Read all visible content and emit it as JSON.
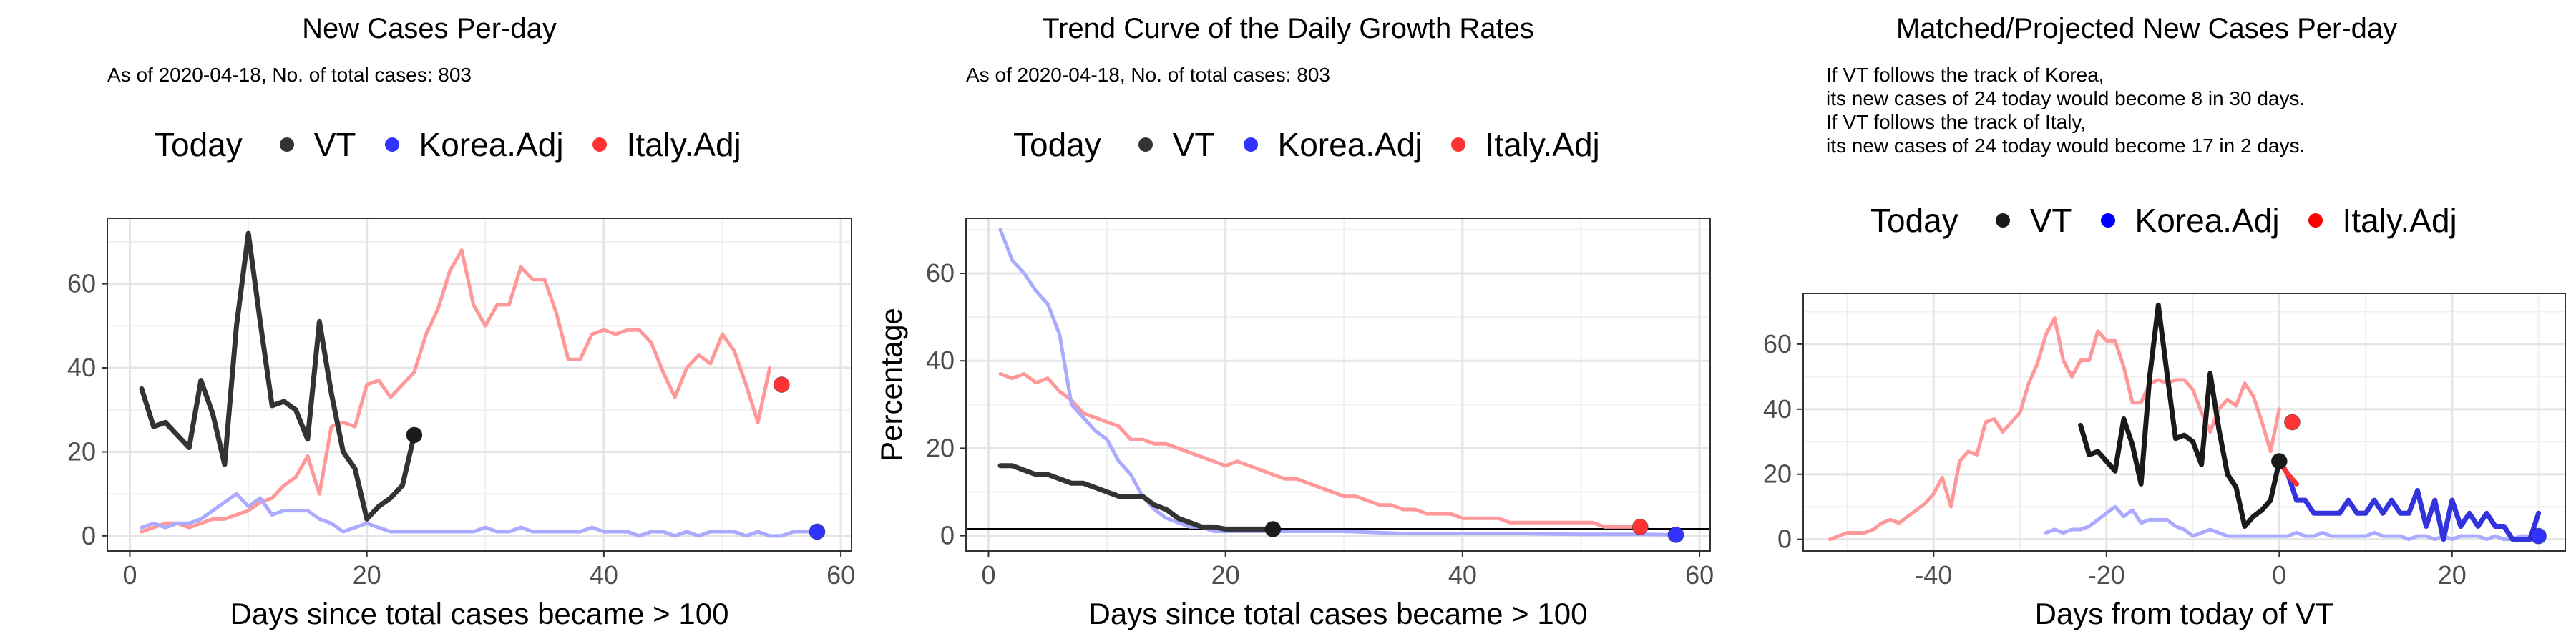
{
  "legend": {
    "title": "Today",
    "entries": [
      {
        "label": "VT",
        "color": "#1a1a1a"
      },
      {
        "label": "Korea.Adj",
        "color": "#3333ff"
      },
      {
        "label": "Italy.Adj",
        "color": "#ff3333"
      }
    ]
  },
  "panels": [
    {
      "title": "New Cases Per-day",
      "subtitle_lines": [
        "As of 2020-04-18, No. of total cases: 803"
      ]
    },
    {
      "title": "Trend Curve of the Daily Growth Rates",
      "subtitle_lines": [
        "As of 2020-04-18, No. of total cases: 803"
      ]
    },
    {
      "title": "Matched/Projected New Cases Per-day",
      "subtitle_lines": [
        "If VT follows the track of Korea,",
        "its new cases of 24 today would become 8 in 30 days.",
        "If VT follows the track of Italy,",
        "its new cases of 24 today would become 17 in 2 days."
      ]
    }
  ],
  "chart_data": [
    {
      "type": "line",
      "title": "New Cases Per-day",
      "xlabel": "Days since total cases became > 100",
      "ylabel": "",
      "xlim": [
        -1.9,
        60.9
      ],
      "ylim": [
        -3.6,
        75.6
      ],
      "xticks": [
        0,
        20,
        40,
        60
      ],
      "yticks": [
        0,
        20,
        40,
        60
      ],
      "grid": true,
      "series": [
        {
          "name": "Italy.Adj",
          "color": "#ff9999",
          "width": 5,
          "x": [
            1,
            2,
            3,
            4,
            5,
            6,
            7,
            8,
            9,
            10,
            11,
            12,
            13,
            14,
            15,
            16,
            17,
            18,
            19,
            20,
            21,
            22,
            23,
            24,
            25,
            26,
            27,
            28,
            29,
            30,
            31,
            32,
            33,
            34,
            35,
            36,
            37,
            38,
            39,
            40,
            41,
            42,
            43,
            44,
            45,
            46,
            47,
            48,
            49,
            50,
            51,
            52,
            53,
            54
          ],
          "y": [
            1,
            2,
            3,
            3,
            2,
            3,
            4,
            4,
            5,
            6,
            8,
            9,
            12,
            14,
            19,
            10,
            26,
            27,
            26,
            36,
            37,
            33,
            36,
            39,
            48,
            54,
            63,
            68,
            55,
            50,
            55,
            55,
            64,
            61,
            61,
            53,
            42,
            42,
            48,
            49,
            48,
            49,
            49,
            46,
            39,
            33,
            40,
            43,
            41,
            48,
            44,
            36,
            27,
            40
          ]
        },
        {
          "name": "Korea.Adj",
          "color": "#aaaaff",
          "width": 5,
          "x": [
            1,
            2,
            3,
            4,
            5,
            6,
            7,
            8,
            9,
            10,
            11,
            12,
            13,
            14,
            15,
            16,
            17,
            18,
            19,
            20,
            21,
            22,
            23,
            24,
            25,
            26,
            27,
            28,
            29,
            30,
            31,
            32,
            33,
            34,
            35,
            36,
            37,
            38,
            39,
            40,
            41,
            42,
            43,
            44,
            45,
            46,
            47,
            48,
            49,
            50,
            51,
            52,
            53,
            54,
            55,
            56,
            57,
            58
          ],
          "y": [
            2,
            3,
            2,
            3,
            3,
            4,
            6,
            8,
            10,
            7,
            9,
            5,
            6,
            6,
            6,
            4,
            3,
            1,
            2,
            3,
            2,
            1,
            1,
            1,
            1,
            1,
            1,
            1,
            1,
            2,
            1,
            1,
            2,
            1,
            1,
            1,
            1,
            1,
            2,
            1,
            1,
            1,
            0,
            1,
            1,
            0,
            1,
            0,
            1,
            1,
            1,
            0,
            1,
            0,
            0,
            1,
            1,
            1
          ]
        },
        {
          "name": "VT",
          "color": "#333333",
          "width": 7,
          "x": [
            1,
            2,
            3,
            4,
            5,
            6,
            7,
            8,
            9,
            10,
            11,
            12,
            13,
            14,
            15,
            16,
            17,
            18,
            19,
            20,
            21,
            22,
            23,
            24
          ],
          "y": [
            35,
            26,
            27,
            24,
            21,
            37,
            29,
            17,
            50,
            72,
            51,
            31,
            32,
            30,
            23,
            51,
            34,
            20,
            16,
            4,
            7,
            9,
            12,
            24
          ]
        }
      ],
      "today_points": [
        {
          "name": "Italy.Adj",
          "x": 55,
          "y": 36,
          "color": "#ff3333"
        },
        {
          "name": "Korea.Adj",
          "x": 58,
          "y": 1,
          "color": "#3333ff"
        },
        {
          "name": "VT",
          "x": 24,
          "y": 24,
          "color": "#1a1a1a"
        }
      ]
    },
    {
      "type": "line",
      "title": "Trend Curve of the Daily Growth Rates",
      "xlabel": "Days since total cases became > 100",
      "ylabel": "Percentage",
      "xlim": [
        -1.9,
        60.9
      ],
      "ylim": [
        -3.5,
        72.6
      ],
      "xticks": [
        0,
        20,
        40,
        60
      ],
      "yticks": [
        0,
        20,
        40,
        60
      ],
      "grid": true,
      "hline": 1.5,
      "series": [
        {
          "name": "Italy.Adj",
          "color": "#ff9999",
          "width": 5,
          "x": [
            1,
            2,
            3,
            4,
            5,
            6,
            7,
            8,
            9,
            10,
            11,
            12,
            13,
            14,
            15,
            16,
            17,
            18,
            19,
            20,
            21,
            22,
            23,
            24,
            25,
            26,
            27,
            28,
            29,
            30,
            31,
            32,
            33,
            34,
            35,
            36,
            37,
            38,
            39,
            40,
            41,
            42,
            43,
            44,
            45,
            46,
            47,
            48,
            49,
            50,
            51,
            52,
            53,
            54,
            55
          ],
          "y": [
            37,
            36,
            37,
            35,
            36,
            33,
            31,
            28,
            27,
            26,
            25,
            22,
            22,
            21,
            21,
            20,
            19,
            18,
            17,
            16,
            17,
            16,
            15,
            14,
            13,
            13,
            12,
            11,
            10,
            9,
            9,
            8,
            7,
            7,
            6,
            6,
            5,
            5,
            5,
            4,
            4,
            4,
            4,
            3,
            3,
            3,
            3,
            3,
            3,
            3,
            3,
            2,
            2,
            2,
            2
          ]
        },
        {
          "name": "Korea.Adj",
          "color": "#aaaaff",
          "width": 5,
          "x": [
            1,
            2,
            3,
            4,
            5,
            6,
            7,
            8,
            9,
            10,
            11,
            12,
            13,
            14,
            15,
            16,
            17,
            18,
            19,
            20,
            21,
            22,
            23,
            24,
            26,
            30,
            35,
            40,
            45,
            50,
            55,
            58
          ],
          "y": [
            70,
            63,
            60,
            56,
            53,
            46,
            30,
            27,
            24,
            22,
            17,
            14,
            9,
            6,
            4,
            3,
            2,
            2,
            1,
            1,
            1,
            1,
            1,
            1,
            1,
            1,
            0.5,
            0.5,
            0.5,
            0.3,
            0.3,
            0.2
          ]
        },
        {
          "name": "VT",
          "color": "#333333",
          "width": 7,
          "x": [
            1,
            2,
            3,
            4,
            5,
            6,
            7,
            8,
            9,
            10,
            11,
            12,
            13,
            14,
            15,
            16,
            17,
            18,
            19,
            20,
            21,
            22,
            23,
            24
          ],
          "y": [
            16,
            16,
            15,
            14,
            14,
            13,
            12,
            12,
            11,
            10,
            9,
            9,
            9,
            7,
            6,
            4,
            3,
            2,
            2,
            1.5,
            1.5,
            1.5,
            1.5,
            1.5
          ]
        }
      ],
      "today_points": [
        {
          "name": "Italy.Adj",
          "x": 55,
          "y": 2,
          "color": "#ff3333"
        },
        {
          "name": "Korea.Adj",
          "x": 58,
          "y": 0.2,
          "color": "#3333ff"
        },
        {
          "name": "VT",
          "x": 24,
          "y": 1.5,
          "color": "#1a1a1a"
        }
      ]
    },
    {
      "type": "line",
      "title": "Matched/Projected New Cases Per-day",
      "xlabel": "Days from today of VT",
      "ylabel": "",
      "xlim": [
        -55.1,
        33.1
      ],
      "ylim": [
        -3.6,
        75.6
      ],
      "xticks": [
        -40,
        -20,
        0,
        20
      ],
      "yticks": [
        0,
        20,
        40,
        60
      ],
      "grid": true,
      "series": [
        {
          "name": "Italy.Adj",
          "color": "#ff9999",
          "width": 5,
          "x": [
            -52,
            -51,
            -50,
            -49,
            -48,
            -47,
            -46,
            -45,
            -44,
            -43,
            -42,
            -41,
            -40,
            -39,
            -38,
            -37,
            -36,
            -35,
            -34,
            -33,
            -32,
            -31,
            -30,
            -29,
            -28,
            -27,
            -26,
            -25,
            -24,
            -23,
            -22,
            -21,
            -20,
            -19,
            -18,
            -17,
            -16,
            -15,
            -14,
            -13,
            -12,
            -11,
            -10,
            -9,
            -8,
            -7,
            -6,
            -5,
            -4,
            -3,
            -2,
            -1,
            0
          ],
          "y": [
            0,
            1,
            2,
            2,
            2,
            3,
            5,
            6,
            5,
            7,
            9,
            11,
            14,
            19,
            10,
            24,
            27,
            26,
            36,
            37,
            33,
            36,
            39,
            48,
            54,
            63,
            68,
            55,
            50,
            55,
            55,
            64,
            61,
            61,
            53,
            42,
            42,
            48,
            49,
            48,
            49,
            49,
            46,
            39,
            33,
            40,
            43,
            41,
            48,
            44,
            36,
            27,
            40
          ]
        },
        {
          "name": "Korea.Adj",
          "color": "#aaaaff",
          "width": 5,
          "x": [
            -27,
            -26,
            -25,
            -24,
            -23,
            -22,
            -21,
            -20,
            -19,
            -18,
            -17,
            -16,
            -15,
            -14,
            -13,
            -12,
            -11,
            -10,
            -9,
            -8,
            -7,
            -6,
            -5,
            -4,
            -3,
            -2,
            -1,
            0,
            1,
            2,
            3,
            4,
            5,
            6,
            7,
            8,
            9,
            10,
            11,
            12,
            13,
            14,
            15,
            16,
            17,
            18,
            19,
            20,
            21,
            22,
            23,
            24,
            25,
            26,
            27,
            28,
            29,
            30
          ],
          "y": [
            2,
            3,
            2,
            3,
            3,
            4,
            6,
            8,
            10,
            7,
            9,
            5,
            6,
            6,
            6,
            4,
            3,
            1,
            2,
            3,
            2,
            1,
            1,
            1,
            1,
            1,
            1,
            1,
            1,
            2,
            1,
            1,
            2,
            1,
            1,
            1,
            1,
            1,
            2,
            1,
            1,
            1,
            0,
            1,
            1,
            0,
            1,
            0,
            1,
            1,
            1,
            0,
            1,
            0,
            0,
            1,
            1,
            1
          ]
        },
        {
          "name": "VT",
          "color": "#1a1a1a",
          "width": 7,
          "x": [
            -23,
            -22,
            -21,
            -20,
            -19,
            -18,
            -17,
            -16,
            -15,
            -14,
            -13,
            -12,
            -11,
            -10,
            -9,
            -8,
            -7,
            -6,
            -5,
            -4,
            -3,
            -2,
            -1,
            0
          ],
          "y": [
            35,
            26,
            27,
            24,
            21,
            37,
            29,
            17,
            50,
            72,
            51,
            31,
            32,
            30,
            23,
            51,
            34,
            20,
            16,
            4,
            7,
            9,
            12,
            24
          ]
        },
        {
          "name": "Korea.Adj projected",
          "color": "#3333dd",
          "width": 7,
          "x": [
            0,
            1,
            2,
            3,
            4,
            5,
            6,
            7,
            8,
            9,
            10,
            11,
            12,
            13,
            14,
            15,
            16,
            17,
            18,
            19,
            20,
            21,
            22,
            23,
            24,
            25,
            26,
            27,
            28,
            29,
            30
          ],
          "y": [
            24,
            20,
            12,
            12,
            8,
            8,
            8,
            8,
            12,
            8,
            8,
            12,
            8,
            12,
            8,
            8,
            15,
            4,
            12,
            0,
            12,
            4,
            8,
            4,
            8,
            4,
            4,
            0,
            0,
            0,
            8
          ]
        },
        {
          "name": "Italy.Adj projected",
          "color": "#ff3333",
          "width": 7,
          "x": [
            0,
            1,
            2
          ],
          "y": [
            24,
            20,
            17
          ]
        }
      ],
      "today_points": [
        {
          "name": "Italy.Adj",
          "x": 1.5,
          "y": 36,
          "color": "#ff3333"
        },
        {
          "name": "VT",
          "x": 0,
          "y": 24,
          "color": "#1a1a1a"
        },
        {
          "name": "Korea.Adj",
          "x": 30,
          "y": 1,
          "color": "#3333ff"
        }
      ]
    }
  ]
}
